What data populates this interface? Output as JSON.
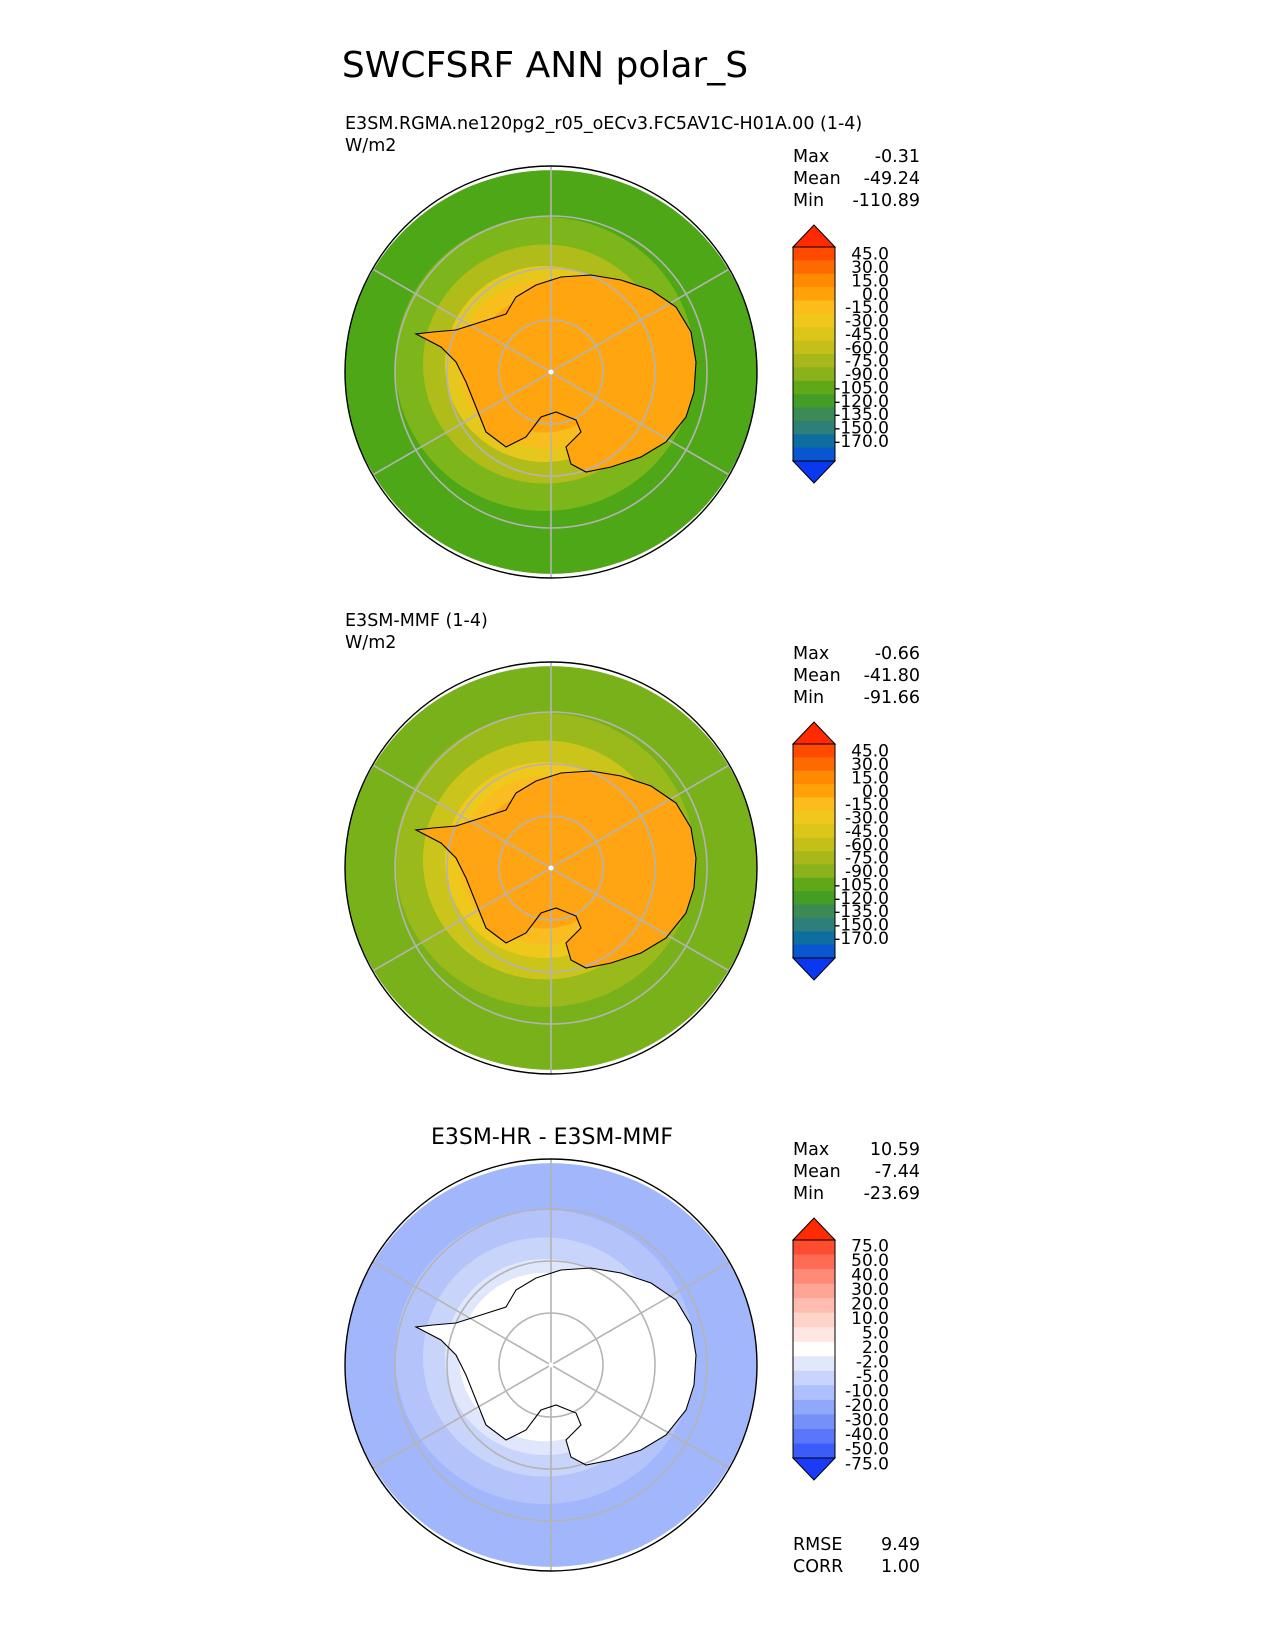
{
  "title": "SWCFSRF ANN polar_S",
  "chart_data": [
    {
      "type": "heatmap",
      "projection": "south polar stereographic",
      "title": "E3SM.RGMA.ne120pg2_r05_oECv3.FC5AV1C-H01A.00 (1-4)",
      "units": "W/m2",
      "stats": [
        {
          "label": "Max",
          "value": "-0.31"
        },
        {
          "label": "Mean",
          "value": "-49.24"
        },
        {
          "label": "Min",
          "value": "-110.89"
        }
      ],
      "colorbar_levels": [
        "45.0",
        "30.0",
        "15.0",
        "0.0",
        "-15.0",
        "-30.0",
        "-45.0",
        "-60.0",
        "-75.0",
        "-90.0",
        "-105.0",
        "-120.0",
        "-135.0",
        "-150.0",
        "-170.0"
      ],
      "colorbar_colors": [
        "#ff2a00",
        "#ff4a00",
        "#ff6a00",
        "#ff8a00",
        "#ffa20a",
        "#fbbc1c",
        "#f0c81c",
        "#dcc61a",
        "#c4c019",
        "#a8b81a",
        "#8ab21a",
        "#60a818",
        "#449e26",
        "#3c8a56",
        "#2e7e7a",
        "#0e6ea0",
        "#0a56d0",
        "#0a38f0"
      ],
      "rings": [
        {
          "value": -47.24,
          "color": "#4da716"
        },
        {
          "value": -70,
          "color": "#7db61a"
        },
        {
          "value": -60,
          "color": "#b0bc1a"
        },
        {
          "value": -40,
          "color": "#e6c81c"
        },
        {
          "value": -22,
          "color": "#f7be1e"
        },
        {
          "value": -12,
          "color": "#ffa50f"
        }
      ]
    },
    {
      "type": "heatmap",
      "projection": "south polar stereographic",
      "title": "E3SM-MMF (1-4)",
      "units": "W/m2",
      "stats": [
        {
          "label": "Max",
          "value": "-0.66"
        },
        {
          "label": "Mean",
          "value": "-41.80"
        },
        {
          "label": "Min",
          "value": "-91.66"
        }
      ],
      "colorbar_levels": [
        "45.0",
        "30.0",
        "15.0",
        "0.0",
        "-15.0",
        "-30.0",
        "-45.0",
        "-60.0",
        "-75.0",
        "-90.0",
        "-105.0",
        "-120.0",
        "-135.0",
        "-150.0",
        "-170.0"
      ],
      "colorbar_colors": [
        "#ff2a00",
        "#ff4a00",
        "#ff6a00",
        "#ff8a00",
        "#ffa20a",
        "#fbbc1c",
        "#f0c81c",
        "#dcc61a",
        "#c4c019",
        "#a8b81a",
        "#8ab21a",
        "#60a818",
        "#449e26",
        "#3c8a56",
        "#2e7e7a",
        "#0e6ea0",
        "#0a56d0",
        "#0a38f0"
      ],
      "rings": [
        {
          "value": -75,
          "color": "#79b11b"
        },
        {
          "value": -62,
          "color": "#9ab91a"
        },
        {
          "value": -50,
          "color": "#cac41b"
        },
        {
          "value": -35,
          "color": "#efc81c"
        },
        {
          "value": -20,
          "color": "#f9bd1f"
        },
        {
          "value": -10,
          "color": "#ffa412"
        }
      ]
    },
    {
      "type": "heatmap",
      "projection": "south polar stereographic",
      "title": "E3SM-HR - E3SM-MMF",
      "units": "",
      "stats": [
        {
          "label": "Max",
          "value": "10.59"
        },
        {
          "label": "Mean",
          "value": "-7.44"
        },
        {
          "label": "Min",
          "value": "-23.69"
        }
      ],
      "colorbar_levels": [
        "75.0",
        "50.0",
        "40.0",
        "30.0",
        "20.0",
        "10.0",
        "5.0",
        "2.0",
        "-2.0",
        "-5.0",
        "-10.0",
        "-20.0",
        "-30.0",
        "-40.0",
        "-50.0",
        "-75.0"
      ],
      "colorbar_colors": [
        "#ff2a00",
        "#ff4b2e",
        "#ff6b55",
        "#ff8a78",
        "#ffa596",
        "#ffbcb0",
        "#ffd2ca",
        "#ffe6e2",
        "#ffffff",
        "#e2e8fb",
        "#c8d4fb",
        "#aebffb",
        "#90a8fa",
        "#7690fa",
        "#5a76fa",
        "#3c5cfa",
        "#1a3cfa"
      ],
      "rings": [
        {
          "value": -12,
          "color": "#a2b6fb"
        },
        {
          "value": -10,
          "color": "#b4c4fb"
        },
        {
          "value": -8,
          "color": "#c9d4fb"
        },
        {
          "value": -5,
          "color": "#e0e6fb"
        },
        {
          "value": 0,
          "color": "#ffffff"
        }
      ],
      "summary": [
        {
          "label": "RMSE",
          "value": "9.49"
        },
        {
          "label": "CORR",
          "value": "1.00"
        }
      ]
    }
  ]
}
